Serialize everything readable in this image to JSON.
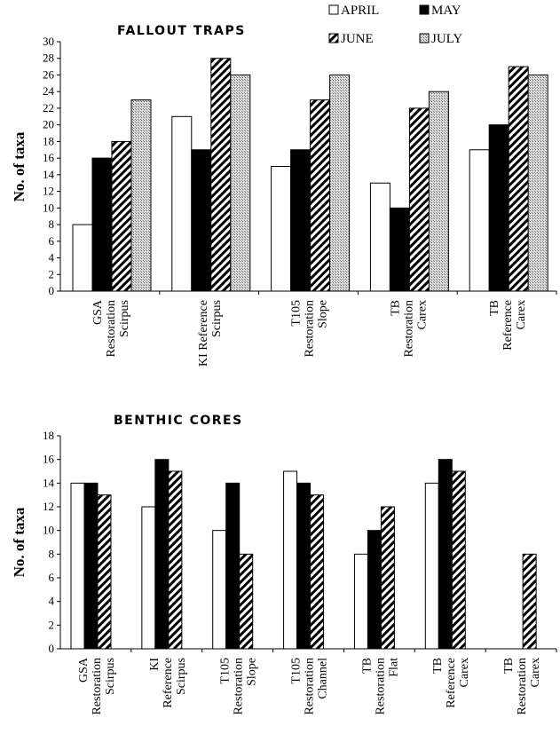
{
  "legend": [
    {
      "label": "APRIL",
      "pattern": "white"
    },
    {
      "label": "MAY",
      "pattern": "black"
    },
    {
      "label": "JUNE",
      "pattern": "diagonal"
    },
    {
      "label": "JULY",
      "pattern": "stipple"
    }
  ],
  "chart_data": [
    {
      "type": "bar",
      "title": "FALLOUT TRAPS",
      "ylabel": "No. of taxa",
      "ylim": [
        0,
        30
      ],
      "ytick_step": 2,
      "categories": [
        [
          "GSA",
          "Restoration",
          "Scirpus"
        ],
        [
          "KI Reference",
          "Scirpus"
        ],
        [
          "T105",
          "Restoration",
          "Slope"
        ],
        [
          "TB",
          "Restoration",
          "Carex"
        ],
        [
          "TB",
          "Reference",
          "Carex"
        ]
      ],
      "series": [
        {
          "name": "APRIL",
          "values": [
            8,
            21,
            15,
            13,
            17
          ]
        },
        {
          "name": "MAY",
          "values": [
            16,
            17,
            17,
            10,
            20
          ]
        },
        {
          "name": "JUNE",
          "values": [
            18,
            28,
            23,
            22,
            27
          ]
        },
        {
          "name": "JULY",
          "values": [
            23,
            26,
            26,
            24,
            26
          ]
        }
      ]
    },
    {
      "type": "bar",
      "title": "BENTHIC CORES",
      "ylabel": "No. of taxa",
      "ylim": [
        0,
        18
      ],
      "ytick_step": 2,
      "categories": [
        [
          "GSA",
          "Restoration",
          "Scirpus"
        ],
        [
          "KI",
          "Reference",
          "Scirpus"
        ],
        [
          "T105",
          "Restoration",
          "Slope"
        ],
        [
          "T105",
          "Restoration",
          "Channel"
        ],
        [
          "TB",
          "Restoration",
          "Flat"
        ],
        [
          "TB",
          "Reference",
          "Carex"
        ],
        [
          "TB",
          "Restoration",
          "Carex"
        ]
      ],
      "series": [
        {
          "name": "APRIL",
          "values": [
            14,
            12,
            10,
            15,
            8,
            14,
            0
          ]
        },
        {
          "name": "MAY",
          "values": [
            14,
            16,
            14,
            14,
            10,
            16,
            0
          ]
        },
        {
          "name": "JUNE",
          "values": [
            13,
            15,
            8,
            13,
            12,
            15,
            8
          ]
        }
      ]
    }
  ]
}
